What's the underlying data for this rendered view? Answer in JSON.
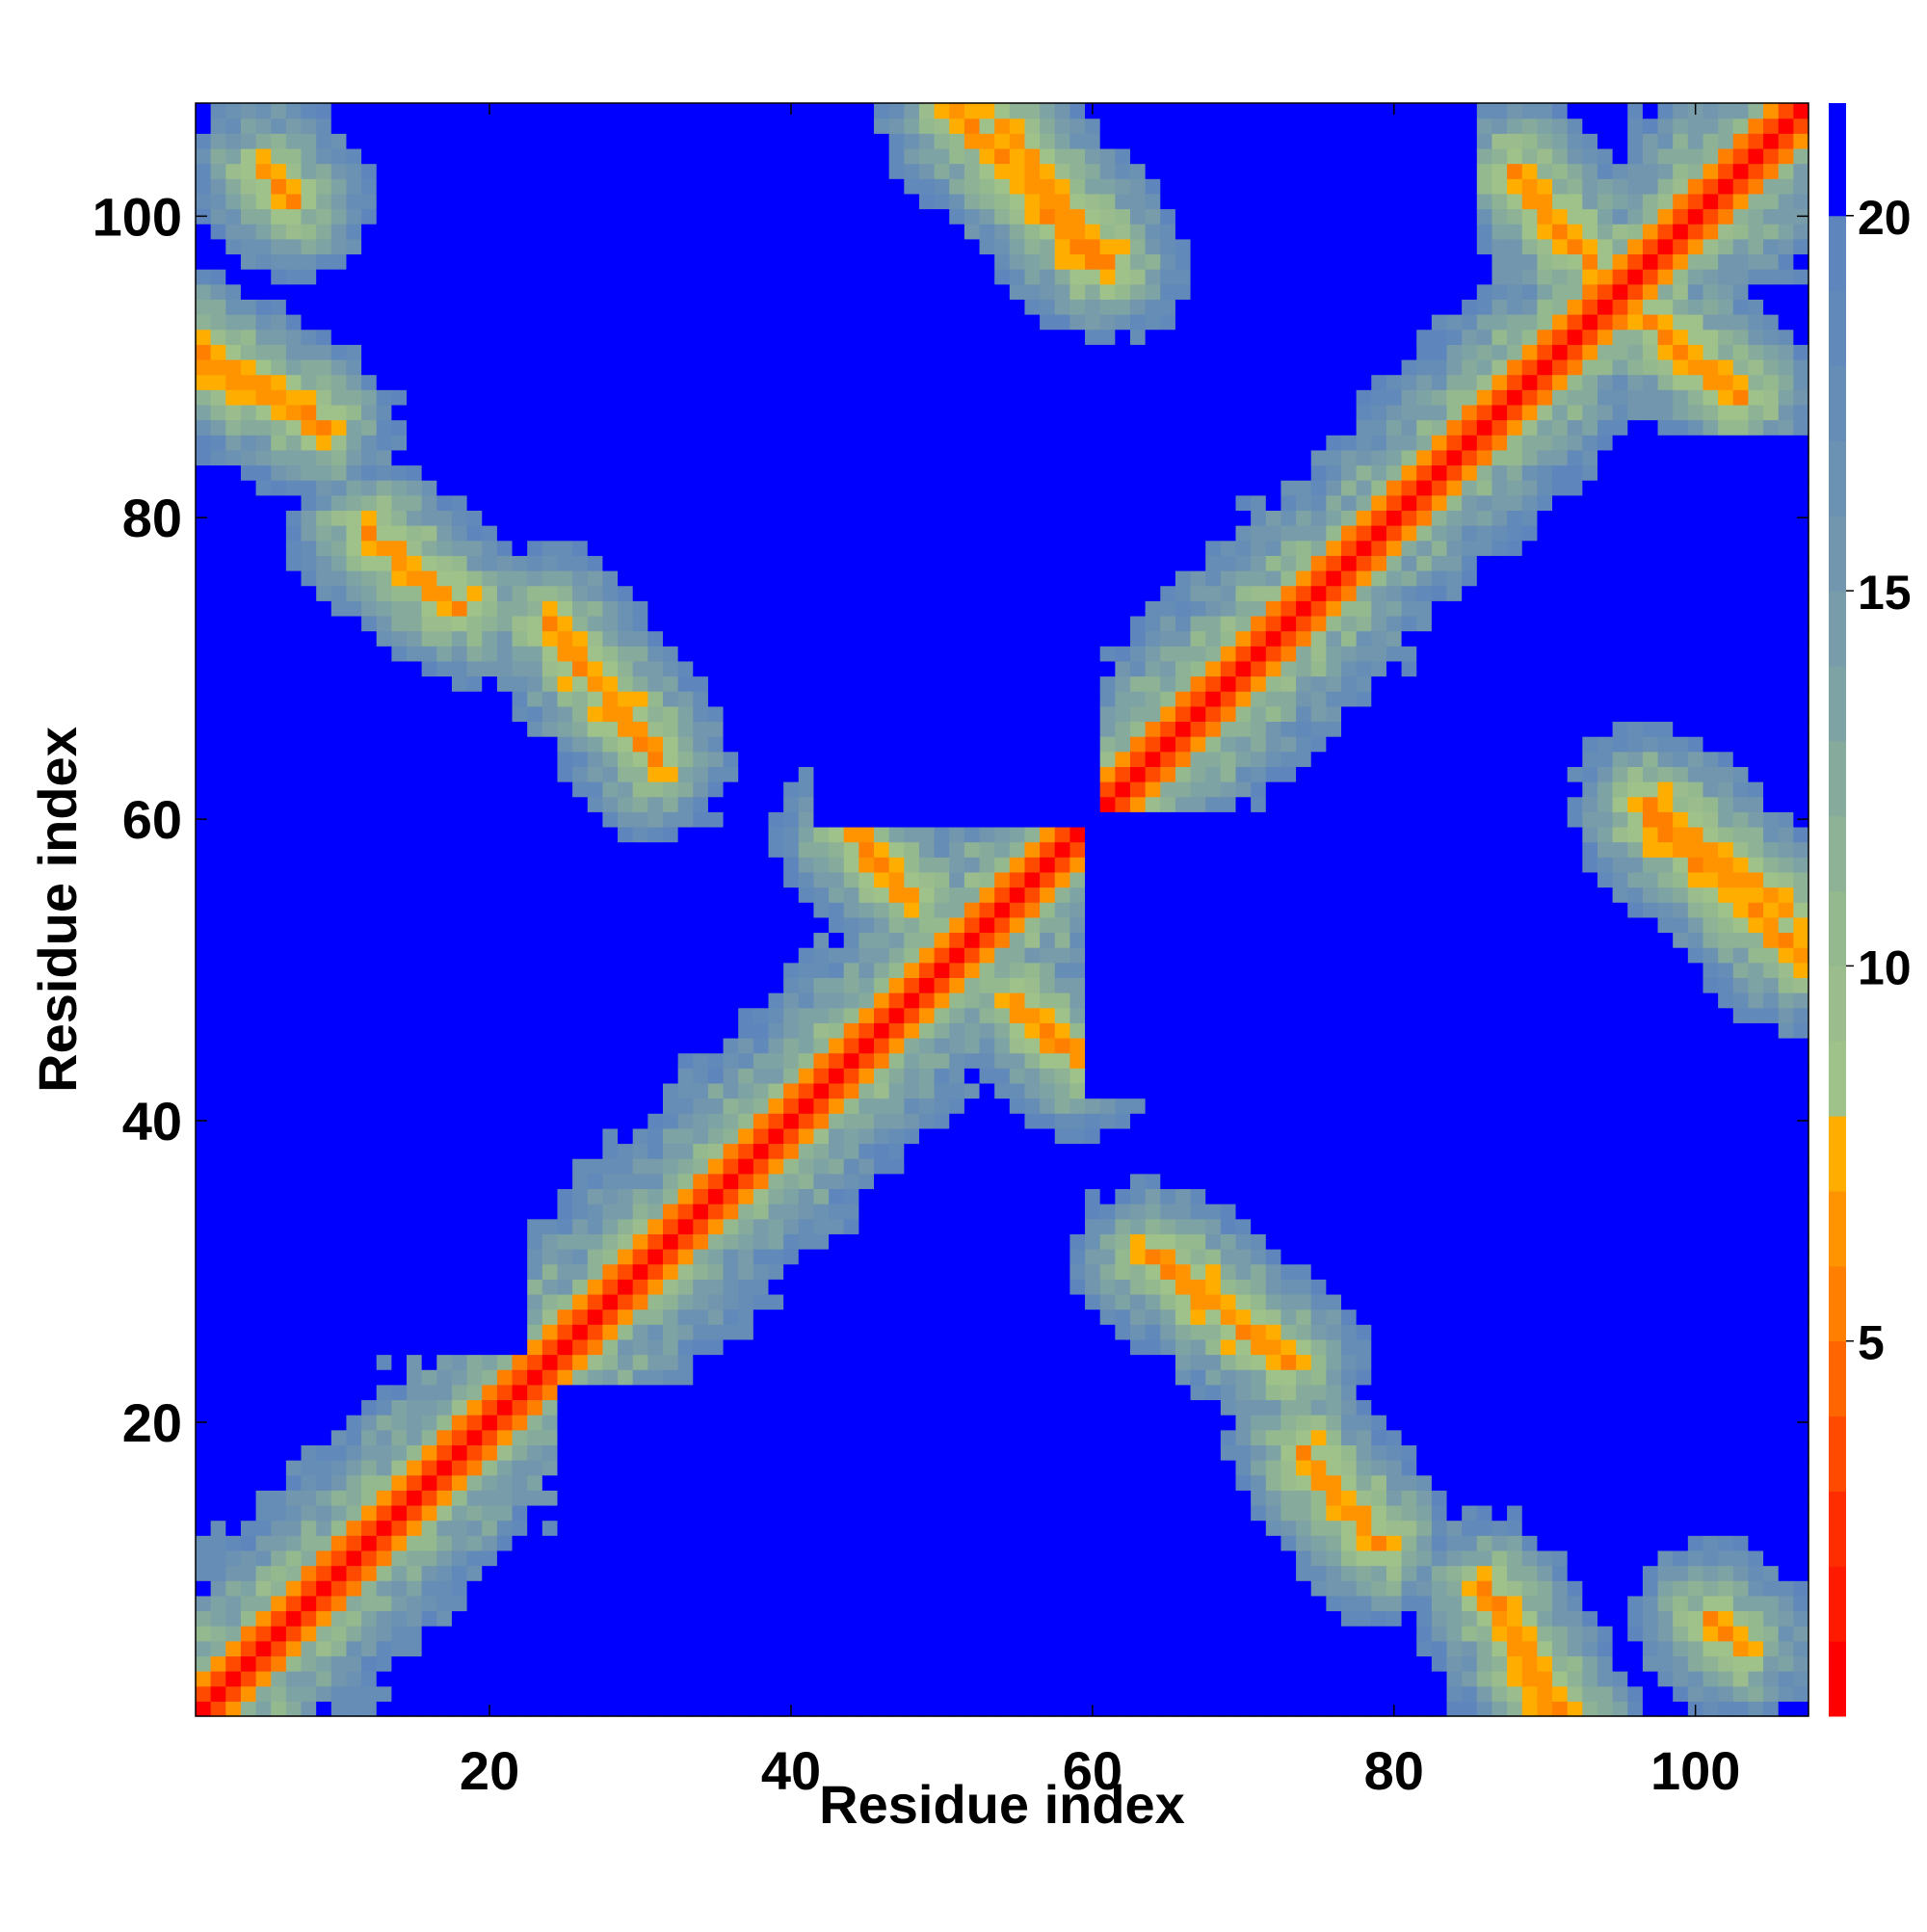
{
  "chart_data": {
    "type": "heatmap",
    "title": "",
    "xlabel": "Residue index",
    "ylabel": "Residue index",
    "n": 107,
    "xlim": [
      0.5,
      107.5
    ],
    "ylim": [
      0.5,
      107.5
    ],
    "x_ticks": [
      20,
      40,
      60,
      80,
      100
    ],
    "y_ticks": [
      20,
      40,
      60,
      80,
      100
    ],
    "colorbar": {
      "ticks": [
        5,
        10,
        15,
        20
      ],
      "range": [
        0,
        21.5
      ],
      "bands": [
        {
          "from": 0,
          "to": 1,
          "color": "#ff0000"
        },
        {
          "from": 1,
          "to": 2,
          "color": "#ff1a00"
        },
        {
          "from": 2,
          "to": 3,
          "color": "#ff2d00"
        },
        {
          "from": 3,
          "to": 4,
          "color": "#ff4a00"
        },
        {
          "from": 4,
          "to": 5,
          "color": "#ff6500"
        },
        {
          "from": 5,
          "to": 6,
          "color": "#ff7f00"
        },
        {
          "from": 6,
          "to": 7,
          "color": "#ff9400"
        },
        {
          "from": 7,
          "to": 8,
          "color": "#ffae00"
        },
        {
          "from": 8,
          "to": 9,
          "color": "#9fc18a"
        },
        {
          "from": 9,
          "to": 10,
          "color": "#9bbd8d"
        },
        {
          "from": 10,
          "to": 11,
          "color": "#95b98f"
        },
        {
          "from": 11,
          "to": 12,
          "color": "#8db295"
        },
        {
          "from": 12,
          "to": 13,
          "color": "#86ab9c"
        },
        {
          "from": 13,
          "to": 14,
          "color": "#7ea3a4"
        },
        {
          "from": 14,
          "to": 15,
          "color": "#789ca9"
        },
        {
          "from": 15,
          "to": 16,
          "color": "#7196ae"
        },
        {
          "from": 16,
          "to": 17,
          "color": "#6b92b2"
        },
        {
          "from": 17,
          "to": 18,
          "color": "#668db5"
        },
        {
          "from": 18,
          "to": 19,
          "color": "#6189b9"
        },
        {
          "from": 19,
          "to": 20,
          "color": "#5e86bd"
        },
        {
          "from": 20,
          "to": 21.5,
          "color": "#0000ff"
        }
      ]
    },
    "features": {
      "diagonal_value": 0.5,
      "cap": 21,
      "contact_bands": [
        {
          "start": [
            44,
            59
          ],
          "end": [
            48,
            55
          ]
        },
        {
          "start": [
            24,
            73
          ],
          "end": [
            31,
            64
          ]
        },
        {
          "start": [
            54,
            106
          ],
          "end": [
            61,
            97
          ]
        },
        {
          "start": [
            97,
            60
          ],
          "end": [
            107,
            51
          ]
        },
        {
          "start": [
            88,
            103
          ],
          "end": [
            93,
            97
          ]
        },
        {
          "start": [
            1,
            91
          ],
          "end": [
            9,
            86
          ]
        },
        {
          "start": [
            87,
            8
          ],
          "end": [
            90,
            1
          ]
        },
        {
          "start": [
            12,
            79
          ],
          "end": [
            18,
            74
          ]
        },
        {
          "start": [
            5,
            103
          ],
          "end": [
            7,
            101
          ]
        }
      ],
      "blue_regions": [
        {
          "x": [
            25,
            55
          ],
          "y": [
            4,
            22
          ]
        },
        {
          "x": [
            60,
            72
          ],
          "y": [
            42,
            60
          ]
        },
        {
          "x": [
            2,
            10
          ],
          "y": [
            30,
            50
          ]
        },
        {
          "x": [
            95,
            107
          ],
          "y": [
            70,
            85
          ]
        },
        {
          "x": [
            62,
            74
          ],
          "y": [
            83,
            90
          ]
        },
        {
          "x": [
            40,
            52
          ],
          "y": [
            70,
            80
          ]
        }
      ]
    }
  }
}
